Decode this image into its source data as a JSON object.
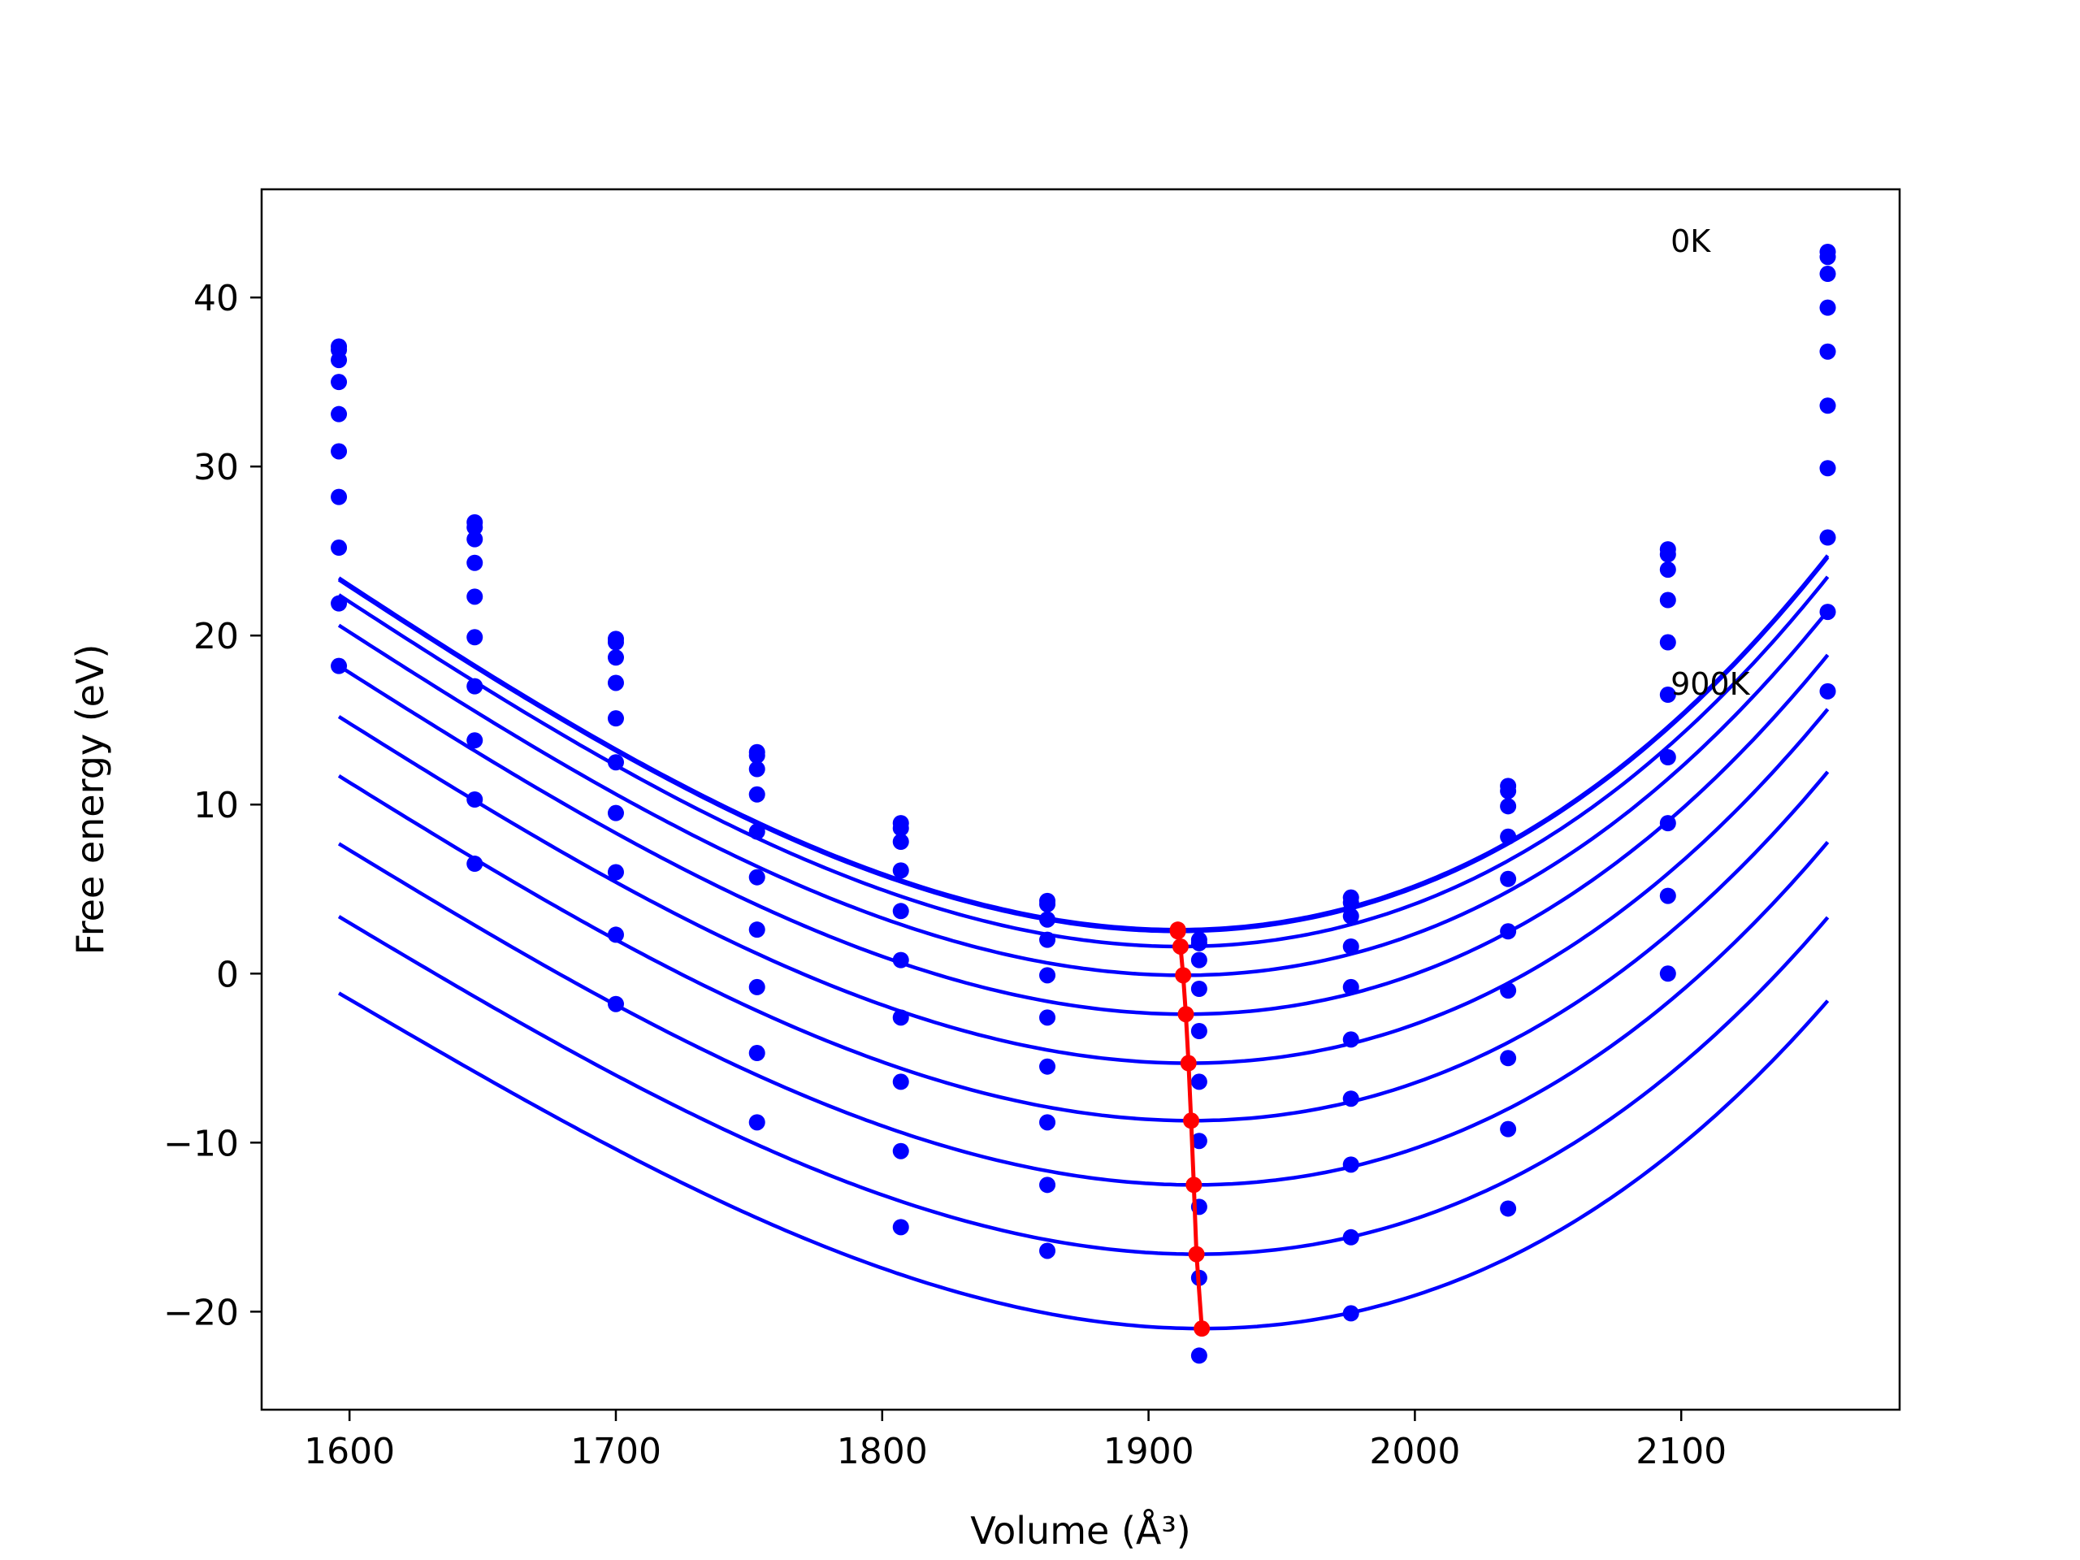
{
  "chart_data": {
    "type": "scatter",
    "xlabel": "Volume (Å³)",
    "ylabel": "Free energy (eV)",
    "xlim": [
      1567,
      2182
    ],
    "ylim": [
      -25.8,
      46.4
    ],
    "xticks": [
      1600,
      1700,
      1800,
      1900,
      2000,
      2100
    ],
    "yticks": [
      -20,
      -10,
      0,
      10,
      20,
      30,
      40
    ],
    "ytick_labels": [
      "−20",
      "−10",
      "0",
      "10",
      "20",
      "30",
      "40"
    ],
    "grid": false,
    "fit_color": "#0000ff",
    "point_color": "#0000ff",
    "minimum_color": "#ff0000",
    "annotations": [
      {
        "text": "0K",
        "x": 2096,
        "y": 42.7
      },
      {
        "text": "900K",
        "x": 2096,
        "y": 16.5
      }
    ],
    "x": [
      1596,
      1647,
      1700,
      1753,
      1807,
      1862,
      1919,
      1976,
      2035,
      2095,
      2155
    ],
    "series": [
      {
        "fit": {
          "a": 0.000301,
          "v0": 1911,
          "f0": 2.6,
          "b": 2.9e-07
        },
        "points": [
          37.1,
          26.7,
          19.8,
          13.1,
          8.9,
          4.3,
          2.0,
          4.5,
          11.1,
          25.1,
          42.7
        ],
        "minimum": [
          1911,
          2.6
        ]
      },
      {
        "fit": {
          "a": 0.000301,
          "v0": 1911,
          "f0": 2.5,
          "b": 2.9e-07
        },
        "points": [
          36.9,
          26.4,
          19.6,
          12.9,
          8.6,
          4.1,
          1.8,
          4.2,
          10.8,
          24.8,
          42.4
        ],
        "minimum": [
          1911,
          2.5
        ]
      },
      {
        "fit": {
          "a": 0.0003,
          "v0": 1912,
          "f0": 1.6,
          "b": 2.9e-07
        },
        "points": [
          36.3,
          25.7,
          18.7,
          12.1,
          7.8,
          3.2,
          0.8,
          3.4,
          9.9,
          23.9,
          41.4
        ],
        "minimum": [
          1912,
          1.6
        ]
      },
      {
        "fit": {
          "a": 0.000298,
          "v0": 1913,
          "f0": -0.1,
          "b": 2.9e-07
        },
        "points": [
          35.0,
          24.3,
          17.2,
          10.6,
          6.1,
          2.0,
          -0.9,
          1.6,
          8.1,
          22.1,
          39.4
        ],
        "minimum": [
          1913,
          -0.1
        ]
      },
      {
        "fit": {
          "a": 0.000296,
          "v0": 1914,
          "f0": -2.4,
          "b": 2.9e-07
        },
        "points": [
          33.1,
          22.3,
          15.1,
          8.4,
          3.7,
          -0.1,
          -3.4,
          -0.8,
          5.6,
          19.6,
          36.8
        ],
        "minimum": [
          1914,
          -2.4
        ]
      },
      {
        "fit": {
          "a": 0.000294,
          "v0": 1915,
          "f0": -5.3,
          "b": 2.9e-07
        },
        "points": [
          30.9,
          19.9,
          12.5,
          5.7,
          0.8,
          -2.6,
          -6.4,
          -3.9,
          2.5,
          16.5,
          33.6
        ],
        "minimum": [
          1915,
          -5.3
        ]
      },
      {
        "fit": {
          "a": 0.000292,
          "v0": 1916,
          "f0": -8.7,
          "b": 2.9e-07
        },
        "points": [
          28.2,
          17.0,
          9.5,
          2.6,
          -2.6,
          -5.5,
          -9.9,
          -7.4,
          -1.0,
          12.8,
          29.9
        ],
        "minimum": [
          1916,
          -8.7
        ]
      },
      {
        "fit": {
          "a": 0.000289,
          "v0": 1917,
          "f0": -12.5,
          "b": 2.9e-07
        },
        "points": [
          25.2,
          13.8,
          6.0,
          -0.8,
          -6.4,
          -8.8,
          -13.8,
          -11.3,
          -5.0,
          8.9,
          25.8
        ],
        "minimum": [
          1917,
          -12.5
        ]
      },
      {
        "fit": {
          "a": 0.000286,
          "v0": 1918,
          "f0": -16.6,
          "b": 2.9e-07
        },
        "points": [
          21.9,
          10.3,
          2.3,
          -4.7,
          -10.5,
          -12.5,
          -18.0,
          -15.6,
          -9.2,
          4.6,
          21.4
        ],
        "minimum": [
          1918,
          -16.6
        ]
      },
      {
        "fit": {
          "a": 0.000283,
          "v0": 1920,
          "f0": -21.0,
          "b": 2.9e-07
        },
        "points": [
          18.2,
          6.5,
          -1.8,
          -8.8,
          -15.0,
          -16.4,
          -22.6,
          -20.1,
          -13.9,
          0.0,
          16.7
        ],
        "minimum": [
          1920,
          -21.0
        ]
      }
    ]
  }
}
